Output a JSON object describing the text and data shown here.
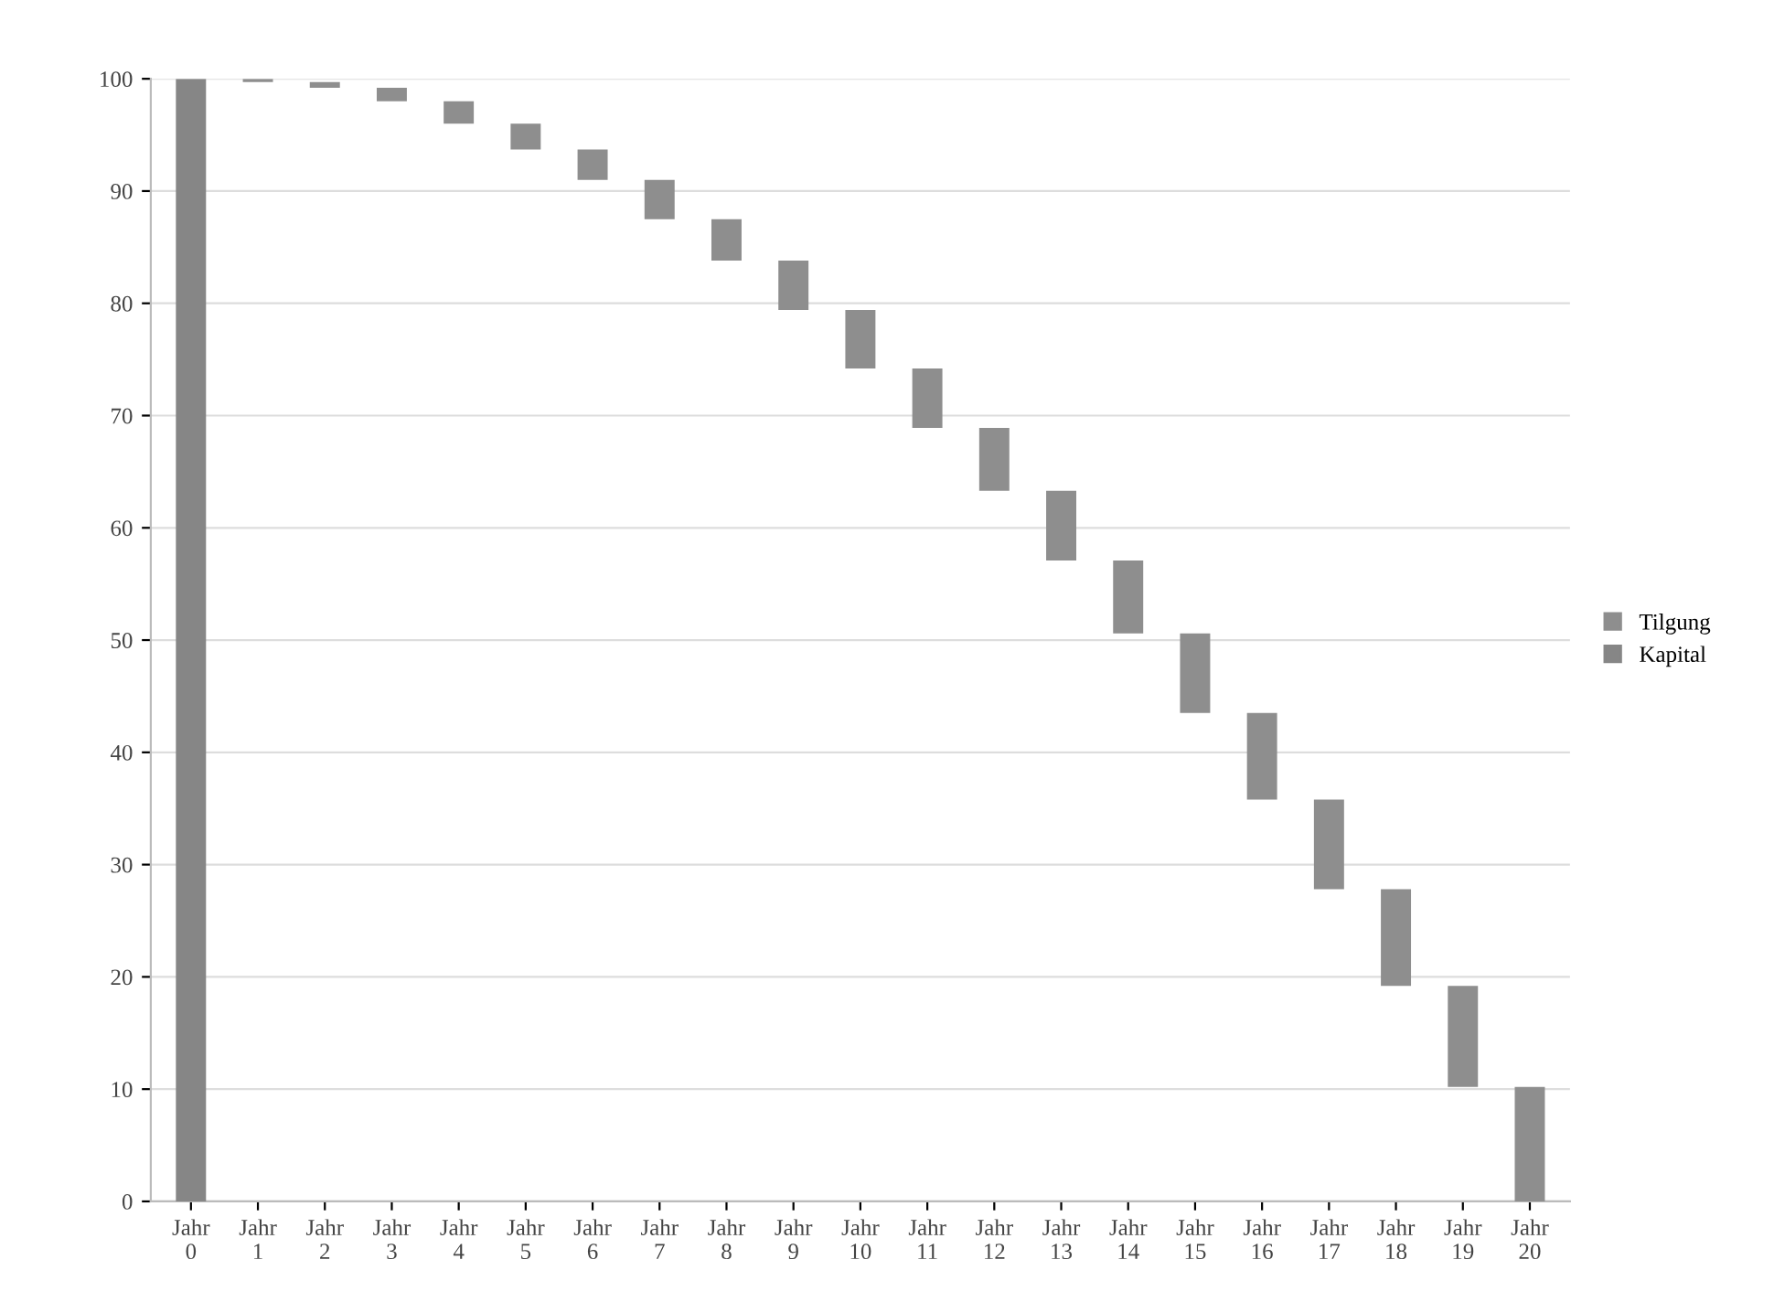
{
  "chart_data": {
    "type": "bar",
    "categories": [
      "Jahr\n0",
      "Jahr\n1",
      "Jahr\n2",
      "Jahr\n3",
      "Jahr\n4",
      "Jahr\n5",
      "Jahr\n6",
      "Jahr\n7",
      "Jahr\n8",
      "Jahr\n9",
      "Jahr\n10",
      "Jahr\n11",
      "Jahr\n12",
      "Jahr\n13",
      "Jahr\n14",
      "Jahr\n15",
      "Jahr\n16",
      "Jahr\n17",
      "Jahr\n18",
      "Jahr\n19",
      "Jahr\n20"
    ],
    "series": [
      {
        "name": "Tilgung",
        "color": "#8e8e8e",
        "values": [
          null,
          0.3,
          0.5,
          1.2,
          2.0,
          2.3,
          2.7,
          3.5,
          3.7,
          4.4,
          5.2,
          5.3,
          5.6,
          6.2,
          6.5,
          7.1,
          7.7,
          8.0,
          8.6,
          9.0,
          10.2
        ],
        "base": [
          null,
          99.7,
          99.2,
          98.0,
          96.0,
          93.7,
          91.0,
          87.5,
          83.8,
          79.4,
          74.2,
          68.9,
          63.3,
          57.1,
          50.6,
          43.5,
          35.8,
          27.8,
          19.2,
          10.2,
          0
        ]
      },
      {
        "name": "Kapital",
        "color": "#868686",
        "values": [
          100,
          null,
          null,
          null,
          null,
          null,
          null,
          null,
          null,
          null,
          null,
          null,
          null,
          null,
          null,
          null,
          null,
          null,
          null,
          null,
          null
        ]
      }
    ],
    "ylim": [
      0,
      100
    ],
    "yticks": [
      0,
      10,
      20,
      30,
      40,
      50,
      60,
      70,
      80,
      90,
      100
    ],
    "grid": "y",
    "legend": "right"
  }
}
